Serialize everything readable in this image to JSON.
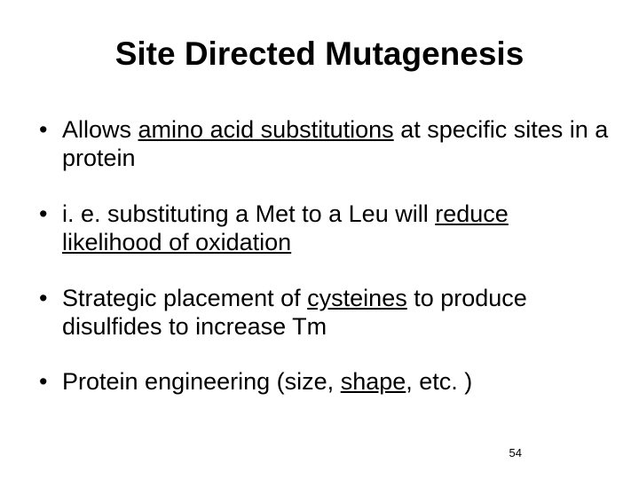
{
  "title": {
    "text": "Site Directed Mutagenesis",
    "fontsize": 37,
    "fontweight": "bold",
    "color": "#000000"
  },
  "bullets": {
    "fontsize": 27,
    "color": "#000000",
    "items": [
      {
        "pre": "Allows ",
        "underlined": "amino acid substitutions",
        "post": " at specific sites in a protein"
      },
      {
        "pre": "i. e. substituting a Met to a Leu will ",
        "underlined": "reduce likelihood of oxidation",
        "post": ""
      },
      {
        "pre": "Strategic placement of ",
        "underlined": "cysteines",
        "post": " to produce disulfides to increase Tm"
      },
      {
        "pre": "Protein engineering (size, ",
        "underlined": "shape",
        "post": ", etc. )"
      }
    ]
  },
  "page_number": "54",
  "page_number_fontsize": 13,
  "background_color": "#ffffff"
}
